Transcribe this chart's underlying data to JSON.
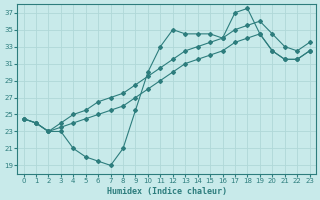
{
  "xlabel": "Humidex (Indice chaleur)",
  "bg_color": "#c8eaea",
  "grid_color": "#b0d8d8",
  "line_color": "#2d7d7d",
  "xlim": [
    -0.5,
    23.5
  ],
  "ylim": [
    18,
    38
  ],
  "xticks": [
    0,
    1,
    2,
    3,
    4,
    5,
    6,
    7,
    8,
    9,
    10,
    11,
    12,
    13,
    14,
    15,
    16,
    17,
    18,
    19,
    20,
    21,
    22,
    23
  ],
  "yticks": [
    19,
    21,
    23,
    25,
    27,
    29,
    31,
    33,
    35,
    37
  ],
  "line_zigzag_x": [
    0,
    1,
    2,
    3,
    4,
    5,
    6,
    7,
    8,
    9,
    10,
    11,
    12,
    13,
    14,
    15,
    16,
    17,
    18,
    19,
    20,
    21,
    22,
    23
  ],
  "line_zigzag_y": [
    24.5,
    24.0,
    23.0,
    23.0,
    21.0,
    20.0,
    19.5,
    19.0,
    21.0,
    25.5,
    30.0,
    33.0,
    35.0,
    34.5,
    34.5,
    34.5,
    34.0,
    37.0,
    37.5,
    34.5,
    32.5,
    31.5,
    31.5,
    32.5
  ],
  "line_mid_x": [
    0,
    1,
    2,
    3,
    4,
    5,
    6,
    7,
    8,
    9,
    10,
    11,
    12,
    13,
    14,
    15,
    16,
    17,
    18,
    19,
    20,
    21,
    22,
    23
  ],
  "line_mid_y": [
    24.5,
    24.0,
    23.0,
    23.5,
    24.0,
    24.5,
    25.0,
    25.5,
    26.0,
    27.0,
    28.0,
    29.0,
    30.0,
    31.0,
    31.5,
    32.0,
    32.5,
    33.5,
    34.0,
    34.5,
    32.5,
    31.5,
    31.5,
    32.5
  ],
  "line_top_x": [
    0,
    1,
    2,
    3,
    4,
    5,
    6,
    7,
    8,
    9,
    10,
    11,
    12,
    13,
    14,
    15,
    16,
    17,
    18,
    19,
    20,
    21,
    22,
    23
  ],
  "line_top_y": [
    24.5,
    24.0,
    23.0,
    24.0,
    25.0,
    25.5,
    26.5,
    27.0,
    27.5,
    28.5,
    29.5,
    30.5,
    31.5,
    32.5,
    33.0,
    33.5,
    34.0,
    35.0,
    35.5,
    36.0,
    34.5,
    33.0,
    32.5,
    33.5
  ]
}
